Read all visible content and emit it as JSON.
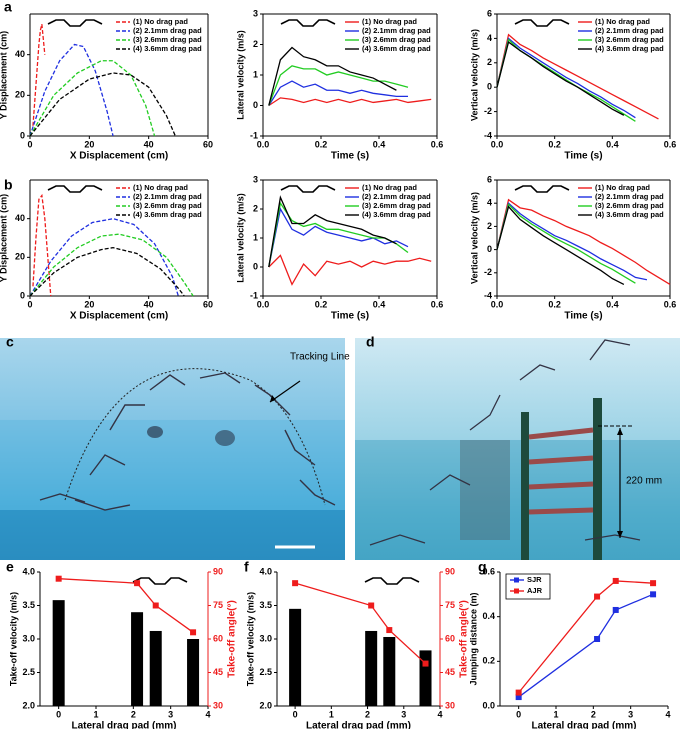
{
  "chart_data": [
    {
      "type": "line",
      "panel": "a",
      "dash": true,
      "box": true,
      "legend": "top-right",
      "xlabel": "X Displacement (cm)",
      "ylabel": "Y Displacement (cm)",
      "xlim": [
        0,
        60
      ],
      "xticks": [
        0,
        20,
        40,
        60
      ],
      "ylim": [
        0,
        60
      ],
      "yticks": [
        0,
        20,
        40
      ],
      "series": [
        {
          "name": "(1) No drag pad",
          "color": "#ee1c1c",
          "x": [
            1,
            2,
            3,
            3.5,
            4,
            5
          ],
          "values": [
            5,
            25,
            45,
            52,
            55,
            40
          ]
        },
        {
          "name": "(2) 2.1mm drag pad",
          "color": "#1f2fe0",
          "x": [
            0,
            5,
            10,
            15,
            18,
            22,
            26,
            28
          ],
          "values": [
            0,
            22,
            37,
            45,
            44,
            32,
            12,
            0
          ]
        },
        {
          "name": "(3) 2.6mm drag pad",
          "color": "#22cc22",
          "x": [
            0,
            8,
            16,
            24,
            28,
            34,
            39,
            42
          ],
          "values": [
            0,
            20,
            31,
            37,
            37,
            30,
            15,
            0
          ]
        },
        {
          "name": "(4) 3.6mm drag pad",
          "color": "#000000",
          "x": [
            0,
            10,
            20,
            28,
            34,
            40,
            46,
            49
          ],
          "values": [
            0,
            18,
            28,
            31,
            30,
            24,
            10,
            0
          ]
        }
      ]
    },
    {
      "type": "line",
      "box": true,
      "legend": "top-right",
      "xlabel": "Time (s)",
      "ylabel": "Lateral velocity (m/s)",
      "xlim": [
        0,
        0.6
      ],
      "xticks": [
        {
          "value": 0,
          "label": "0.0"
        },
        0.2,
        0.4,
        0.6
      ],
      "ylim": [
        -1,
        3
      ],
      "yticks": [
        -1,
        0,
        1,
        2,
        3
      ],
      "x": [
        0.02,
        0.06,
        0.1,
        0.14,
        0.18,
        0.22,
        0.26,
        0.3,
        0.34,
        0.38,
        0.42,
        0.46,
        0.5,
        0.54,
        0.58
      ],
      "series": [
        {
          "name": "(1) No drag pad",
          "color": "#ee1c1c",
          "values": [
            0,
            0.25,
            0.2,
            0.1,
            0.2,
            0.1,
            0.2,
            0.1,
            0.2,
            0.1,
            0.15,
            0.2,
            0.1,
            0.15,
            0.2
          ]
        },
        {
          "name": "(2) 2.1mm drag pad",
          "color": "#1f2fe0",
          "values": [
            0,
            0.6,
            0.8,
            0.6,
            0.7,
            0.5,
            0.5,
            0.4,
            0.5,
            0.4,
            0.35,
            0.3,
            0.3,
            null,
            null
          ]
        },
        {
          "name": "(3) 2.6mm drag pad",
          "color": "#22cc22",
          "values": [
            0,
            1.0,
            1.3,
            1.2,
            1.2,
            1.0,
            1.1,
            1.0,
            0.9,
            0.8,
            0.8,
            0.7,
            0.6,
            null,
            null
          ]
        },
        {
          "name": "(4) 3.6mm drag pad",
          "color": "#000000",
          "values": [
            0,
            1.5,
            1.9,
            1.6,
            1.5,
            1.3,
            1.3,
            1.1,
            1.0,
            0.9,
            0.7,
            0.5,
            null,
            null,
            null
          ]
        }
      ]
    },
    {
      "type": "line",
      "box": true,
      "legend": "top-right",
      "xlabel": "Time (s)",
      "ylabel": "Vertical velocity (m/s)",
      "xlim": [
        0,
        0.6
      ],
      "xticks": [
        {
          "value": 0,
          "label": "0.0"
        },
        0.2,
        0.4,
        0.6
      ],
      "ylim": [
        -4,
        6
      ],
      "yticks": [
        -4,
        -2,
        0,
        2,
        4,
        6
      ],
      "x": [
        0,
        0.04,
        0.08,
        0.12,
        0.16,
        0.2,
        0.24,
        0.28,
        0.32,
        0.36,
        0.4,
        0.44,
        0.48,
        0.52,
        0.56
      ],
      "series": [
        {
          "name": "(1) No drag pad",
          "color": "#ee1c1c",
          "values": [
            0,
            4.3,
            3.5,
            3.0,
            2.4,
            1.9,
            1.4,
            0.9,
            0.4,
            -0.1,
            -0.6,
            -1.1,
            -1.6,
            -2.1,
            -2.6
          ]
        },
        {
          "name": "(2) 2.1mm drag pad",
          "color": "#1f2fe0",
          "values": [
            0,
            4.0,
            3.2,
            2.6,
            2.0,
            1.4,
            0.8,
            0.3,
            -0.3,
            -0.8,
            -1.4,
            -1.9,
            -2.5,
            null,
            null
          ]
        },
        {
          "name": "(3) 2.6mm drag pad",
          "color": "#22cc22",
          "values": [
            0,
            3.9,
            3.0,
            2.4,
            1.8,
            1.2,
            0.6,
            0.0,
            -0.5,
            -1.0,
            -1.6,
            -2.2,
            -2.8,
            null,
            null
          ]
        },
        {
          "name": "(4) 3.6mm drag pad",
          "color": "#000000",
          "values": [
            0,
            3.7,
            3.0,
            2.4,
            1.7,
            1.1,
            0.5,
            0.0,
            -0.6,
            -1.2,
            -1.8,
            -2.3,
            null,
            null,
            null
          ]
        }
      ]
    },
    {
      "type": "line",
      "panel": "b",
      "dash": true,
      "box": true,
      "legend": "top-right",
      "xlabel": "X Displacement (cm)",
      "ylabel": "Y Displacement (cm)",
      "xlim": [
        0,
        60
      ],
      "xticks": [
        0,
        20,
        40,
        60
      ],
      "ylim": [
        0,
        60
      ],
      "yticks": [
        0,
        20,
        40
      ],
      "series": [
        {
          "name": "(1) No drag pad",
          "color": "#ee1c1c",
          "x": [
            1,
            2,
            3,
            4,
            5,
            6,
            7
          ],
          "values": [
            5,
            30,
            50,
            52,
            40,
            20,
            0
          ]
        },
        {
          "name": "(2) 2.1mm drag pad",
          "color": "#1f2fe0",
          "x": [
            0,
            7,
            14,
            21,
            28,
            35,
            42,
            48,
            50
          ],
          "values": [
            0,
            18,
            31,
            38,
            40,
            37,
            27,
            10,
            0
          ]
        },
        {
          "name": "(3) 2.6mm drag pad",
          "color": "#22cc22",
          "x": [
            0,
            8,
            16,
            24,
            30,
            38,
            46,
            52,
            55
          ],
          "values": [
            0,
            15,
            25,
            31,
            32,
            29,
            20,
            7,
            0
          ]
        },
        {
          "name": "(4) 3.6mm drag pad",
          "color": "#000000",
          "x": [
            0,
            8,
            16,
            24,
            28,
            36,
            44,
            50,
            52
          ],
          "values": [
            0,
            12,
            20,
            24,
            25,
            22,
            14,
            4,
            0
          ]
        }
      ]
    },
    {
      "type": "line",
      "box": true,
      "legend": "top-right",
      "xlabel": "Time (s)",
      "ylabel": "Lateral velocity (m/s)",
      "xlim": [
        0,
        0.6
      ],
      "xticks": [
        {
          "value": 0,
          "label": "0.0"
        },
        0.2,
        0.4,
        0.6
      ],
      "ylim": [
        -1,
        3
      ],
      "yticks": [
        -1,
        0,
        1,
        2,
        3
      ],
      "x": [
        0.02,
        0.06,
        0.1,
        0.14,
        0.18,
        0.22,
        0.26,
        0.3,
        0.34,
        0.38,
        0.42,
        0.46,
        0.5,
        0.54,
        0.58
      ],
      "series": [
        {
          "name": "(1) No drag pad",
          "color": "#ee1c1c",
          "values": [
            0,
            0.4,
            -0.6,
            0.1,
            -0.3,
            0.2,
            0.1,
            0.2,
            0.0,
            0.2,
            0.1,
            0.2,
            0.2,
            0.3,
            0.2
          ]
        },
        {
          "name": "(2) 2.1mm drag pad",
          "color": "#1f2fe0",
          "values": [
            0,
            2.0,
            1.3,
            1.1,
            1.4,
            1.2,
            1.1,
            1.0,
            0.9,
            1.0,
            0.8,
            0.9,
            0.7,
            null,
            null
          ]
        },
        {
          "name": "(3) 2.6mm drag pad",
          "color": "#22cc22",
          "values": [
            0,
            2.2,
            1.6,
            1.4,
            1.5,
            1.3,
            1.3,
            1.2,
            1.1,
            1.0,
            1.0,
            0.8,
            0.5,
            null,
            null
          ]
        },
        {
          "name": "(4) 3.6mm drag pad",
          "color": "#000000",
          "values": [
            0,
            2.4,
            1.5,
            1.5,
            1.8,
            1.6,
            1.5,
            1.4,
            1.3,
            1.1,
            1.0,
            0.8,
            null,
            null,
            null
          ]
        }
      ]
    },
    {
      "type": "line",
      "box": true,
      "legend": "top-right",
      "xlabel": "Time (s)",
      "ylabel": "Vertical velocity (m/s)",
      "xlim": [
        0,
        0.6
      ],
      "xticks": [
        {
          "value": 0,
          "label": "0.0"
        },
        0.2,
        0.4,
        0.6
      ],
      "ylim": [
        -4,
        6
      ],
      "yticks": [
        -4,
        -2,
        0,
        2,
        4,
        6
      ],
      "x": [
        0,
        0.04,
        0.08,
        0.12,
        0.16,
        0.2,
        0.24,
        0.28,
        0.32,
        0.36,
        0.4,
        0.44,
        0.48,
        0.52,
        0.56,
        0.6
      ],
      "series": [
        {
          "name": "(1) No drag pad",
          "color": "#ee1c1c",
          "values": [
            0,
            4.3,
            3.6,
            3.4,
            2.9,
            2.5,
            2.0,
            1.6,
            1.2,
            0.6,
            0.1,
            -0.5,
            -1.1,
            -1.8,
            -2.4,
            -3.0
          ]
        },
        {
          "name": "(2) 2.1mm drag pad",
          "color": "#1f2fe0",
          "values": [
            0,
            4.0,
            3.1,
            2.4,
            1.8,
            1.2,
            0.8,
            0.3,
            -0.2,
            -0.8,
            -1.3,
            -1.8,
            -2.4,
            -2.6,
            null,
            null
          ]
        },
        {
          "name": "(3) 2.6mm drag pad",
          "color": "#22cc22",
          "values": [
            0,
            3.9,
            2.9,
            2.2,
            1.6,
            1.0,
            0.5,
            0.0,
            -0.6,
            -1.2,
            -1.7,
            -2.3,
            -2.9,
            null,
            null,
            null
          ]
        },
        {
          "name": "(4) 3.6mm drag pad",
          "color": "#000000",
          "values": [
            0,
            3.7,
            2.6,
            1.9,
            1.2,
            0.6,
            0.0,
            -0.6,
            -1.2,
            -1.8,
            -2.5,
            -3.0,
            null,
            null,
            null,
            null
          ]
        }
      ]
    },
    {
      "type": "combo",
      "panel": "e",
      "xlabel": "Lateral drag pad (mm)",
      "ylabel": "Take-off velocity (m/s)",
      "y2label": "Take-off angle(°)",
      "y2color": "#ee1c1c",
      "xlim": [
        -0.5,
        4
      ],
      "xticks": [
        0,
        1,
        2,
        3,
        4
      ],
      "ylim": [
        2.0,
        4.0
      ],
      "yticks": [
        {
          "value": 2.0,
          "label": "2.0"
        },
        2.5,
        {
          "value": 3.0,
          "label": "3.0"
        },
        3.5,
        {
          "value": 4.0,
          "label": "4.0"
        }
      ],
      "y2lim": [
        30,
        90
      ],
      "y2ticks": [
        30,
        45,
        60,
        75,
        90
      ],
      "x": [
        0,
        2.1,
        2.6,
        3.6
      ],
      "series": [
        {
          "type": "bar",
          "color": "#000000",
          "values": [
            3.58,
            3.4,
            3.12,
            3.0
          ]
        },
        {
          "type": "line",
          "axis": "y2",
          "color": "#ee1c1c",
          "values": [
            87,
            85,
            75,
            63
          ]
        }
      ]
    },
    {
      "type": "combo",
      "panel": "f",
      "xlabel": "Lateral drag pad (mm)",
      "ylabel": "Take-off velocity (m/s)",
      "y2label": "Take-off angle(°)",
      "y2color": "#ee1c1c",
      "xlim": [
        -0.5,
        4
      ],
      "xticks": [
        0,
        1,
        2,
        3,
        4
      ],
      "ylim": [
        2.0,
        4.0
      ],
      "yticks": [
        {
          "value": 2.0,
          "label": "2.0"
        },
        2.5,
        {
          "value": 3.0,
          "label": "3.0"
        },
        3.5,
        {
          "value": 4.0,
          "label": "4.0"
        }
      ],
      "y2lim": [
        30,
        90
      ],
      "y2ticks": [
        30,
        45,
        60,
        75,
        90
      ],
      "x": [
        0,
        2.1,
        2.6,
        3.6
      ],
      "series": [
        {
          "type": "bar",
          "color": "#000000",
          "values": [
            3.45,
            3.12,
            3.03,
            2.83
          ]
        },
        {
          "type": "line",
          "axis": "y2",
          "color": "#ee1c1c",
          "values": [
            85,
            75,
            64,
            49
          ]
        }
      ]
    },
    {
      "type": "line",
      "panel": "g",
      "markers": true,
      "legend": "top-left",
      "xlabel": "Lateral drag pad (mm)",
      "ylabel": "Jumping distance (m)",
      "xlim": [
        -0.5,
        4
      ],
      "xticks": [
        0,
        1,
        2,
        3,
        4
      ],
      "ylim": [
        0,
        0.6
      ],
      "yticks": [
        {
          "value": 0,
          "label": "0.0"
        },
        0.2,
        0.4,
        0.6
      ],
      "x": [
        0,
        2.1,
        2.6,
        3.6
      ],
      "series": [
        {
          "name": "SJR",
          "color": "#1f2fe0",
          "values": [
            0.04,
            0.3,
            0.43,
            0.5
          ]
        },
        {
          "name": "AJR",
          "color": "#ee1c1c",
          "values": [
            0.06,
            0.49,
            0.56,
            0.55
          ]
        }
      ]
    }
  ],
  "images": [
    {
      "panel": "c",
      "annotation": "Tracking Line"
    },
    {
      "panel": "d",
      "annotation": "220 mm"
    }
  ]
}
